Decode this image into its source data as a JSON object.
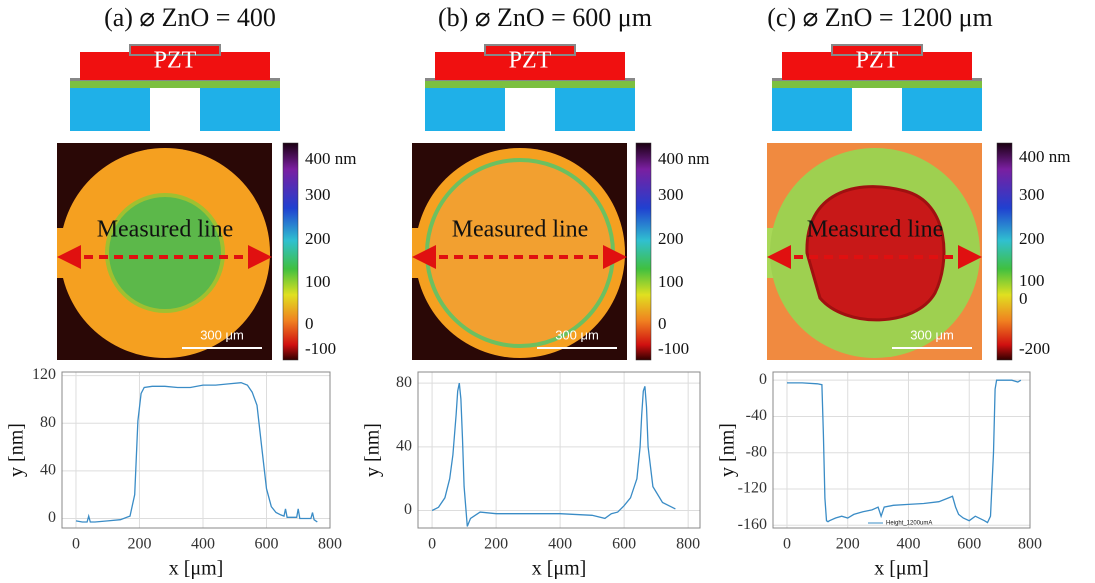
{
  "panels": [
    {
      "title": "(a) ⌀ ZnO = 400",
      "schematic_label": "PZT",
      "measured_line": "Measured line",
      "scale_bar": "300 μm",
      "colorbar_labels": [
        "400 nm",
        "300",
        "200",
        "100",
        "0",
        "-100"
      ]
    },
    {
      "title": "(b) ⌀ ZnO = 600 μm",
      "schematic_label": "PZT",
      "measured_line": "Measured line",
      "scale_bar": "300 μm",
      "colorbar_labels": [
        "400 nm",
        "300",
        "200",
        "100",
        "0",
        "-100"
      ]
    },
    {
      "title": "(c) ⌀ ZnO = 1200 μm",
      "schematic_label": "PZT",
      "measured_line": "Measured line",
      "scale_bar": "300 μm",
      "colorbar_labels": [
        "400 nm",
        "300",
        "200",
        "100",
        "0",
        "-200"
      ]
    }
  ],
  "chart_data": [
    {
      "type": "line",
      "x_label": "x [μm]",
      "y_label": "y [nm]",
      "grid": true,
      "color": "#3a8cc6",
      "x": [
        0,
        20,
        35,
        40,
        45,
        60,
        100,
        140,
        170,
        185,
        195,
        205,
        215,
        240,
        280,
        320,
        360,
        400,
        440,
        480,
        520,
        540,
        555,
        570,
        585,
        600,
        615,
        630,
        645,
        655,
        660,
        665,
        680,
        695,
        700,
        705,
        720,
        740,
        745,
        750,
        760
      ],
      "values": [
        -2,
        -3,
        -3,
        2,
        -3,
        -3,
        -2,
        -1,
        2,
        20,
        82,
        105,
        110,
        111,
        111,
        110,
        110,
        112,
        112,
        113,
        114,
        112,
        106,
        95,
        60,
        25,
        10,
        5,
        3,
        2,
        8,
        1,
        1,
        1,
        8,
        0,
        0,
        0,
        5,
        -1,
        -3
      ],
      "xlim": [
        -44,
        800
      ],
      "ylim": [
        -8,
        123
      ],
      "xticks": [
        0,
        200,
        400,
        600,
        800
      ],
      "yticks": [
        0,
        40,
        80,
        120
      ]
    },
    {
      "type": "line",
      "x_label": "x [μm]",
      "y_label": "y [nm]",
      "grid": true,
      "color": "#3a8cc6",
      "x": [
        0,
        20,
        40,
        55,
        65,
        75,
        80,
        85,
        90,
        95,
        100,
        110,
        120,
        150,
        200,
        300,
        400,
        500,
        540,
        560,
        580,
        600,
        620,
        640,
        650,
        655,
        660,
        665,
        670,
        675,
        690,
        720,
        760
      ],
      "values": [
        0,
        2,
        8,
        20,
        35,
        60,
        75,
        80,
        70,
        45,
        15,
        -10,
        -5,
        -1,
        -2,
        -2,
        -2,
        -3,
        -5,
        -2,
        -1,
        3,
        8,
        20,
        40,
        60,
        75,
        78,
        65,
        40,
        15,
        5,
        1
      ],
      "xlim": [
        -44,
        837
      ],
      "ylim": [
        -11,
        87
      ],
      "xticks": [
        0,
        200,
        400,
        600,
        800
      ],
      "yticks": [
        0,
        40,
        80
      ]
    },
    {
      "type": "line",
      "x_label": "x [μm]",
      "y_label": "y [nm]",
      "grid": true,
      "color": "#3a8cc6",
      "legend_name": "Height_1200umA",
      "x": [
        0,
        50,
        100,
        115,
        120,
        125,
        130,
        135,
        140,
        160,
        180,
        200,
        220,
        250,
        280,
        300,
        310,
        320,
        350,
        400,
        450,
        500,
        530,
        545,
        555,
        565,
        580,
        600,
        620,
        650,
        660,
        670,
        680,
        685,
        690,
        700,
        740,
        760,
        770
      ],
      "values": [
        -3,
        -3,
        -4,
        -5,
        -60,
        -130,
        -155,
        -156,
        -155,
        -152,
        -150,
        -152,
        -148,
        -145,
        -143,
        -140,
        -150,
        -140,
        -138,
        -137,
        -136,
        -134,
        -130,
        -128,
        -140,
        -148,
        -152,
        -155,
        -150,
        -155,
        -157,
        -150,
        -80,
        -10,
        0,
        0,
        0,
        -2,
        0
      ],
      "xlim": [
        -46,
        800
      ],
      "ylim": [
        -163,
        9
      ],
      "xticks": [
        0,
        200,
        400,
        600,
        800
      ],
      "yticks": [
        0,
        -40,
        -80,
        -120,
        -160
      ]
    }
  ]
}
